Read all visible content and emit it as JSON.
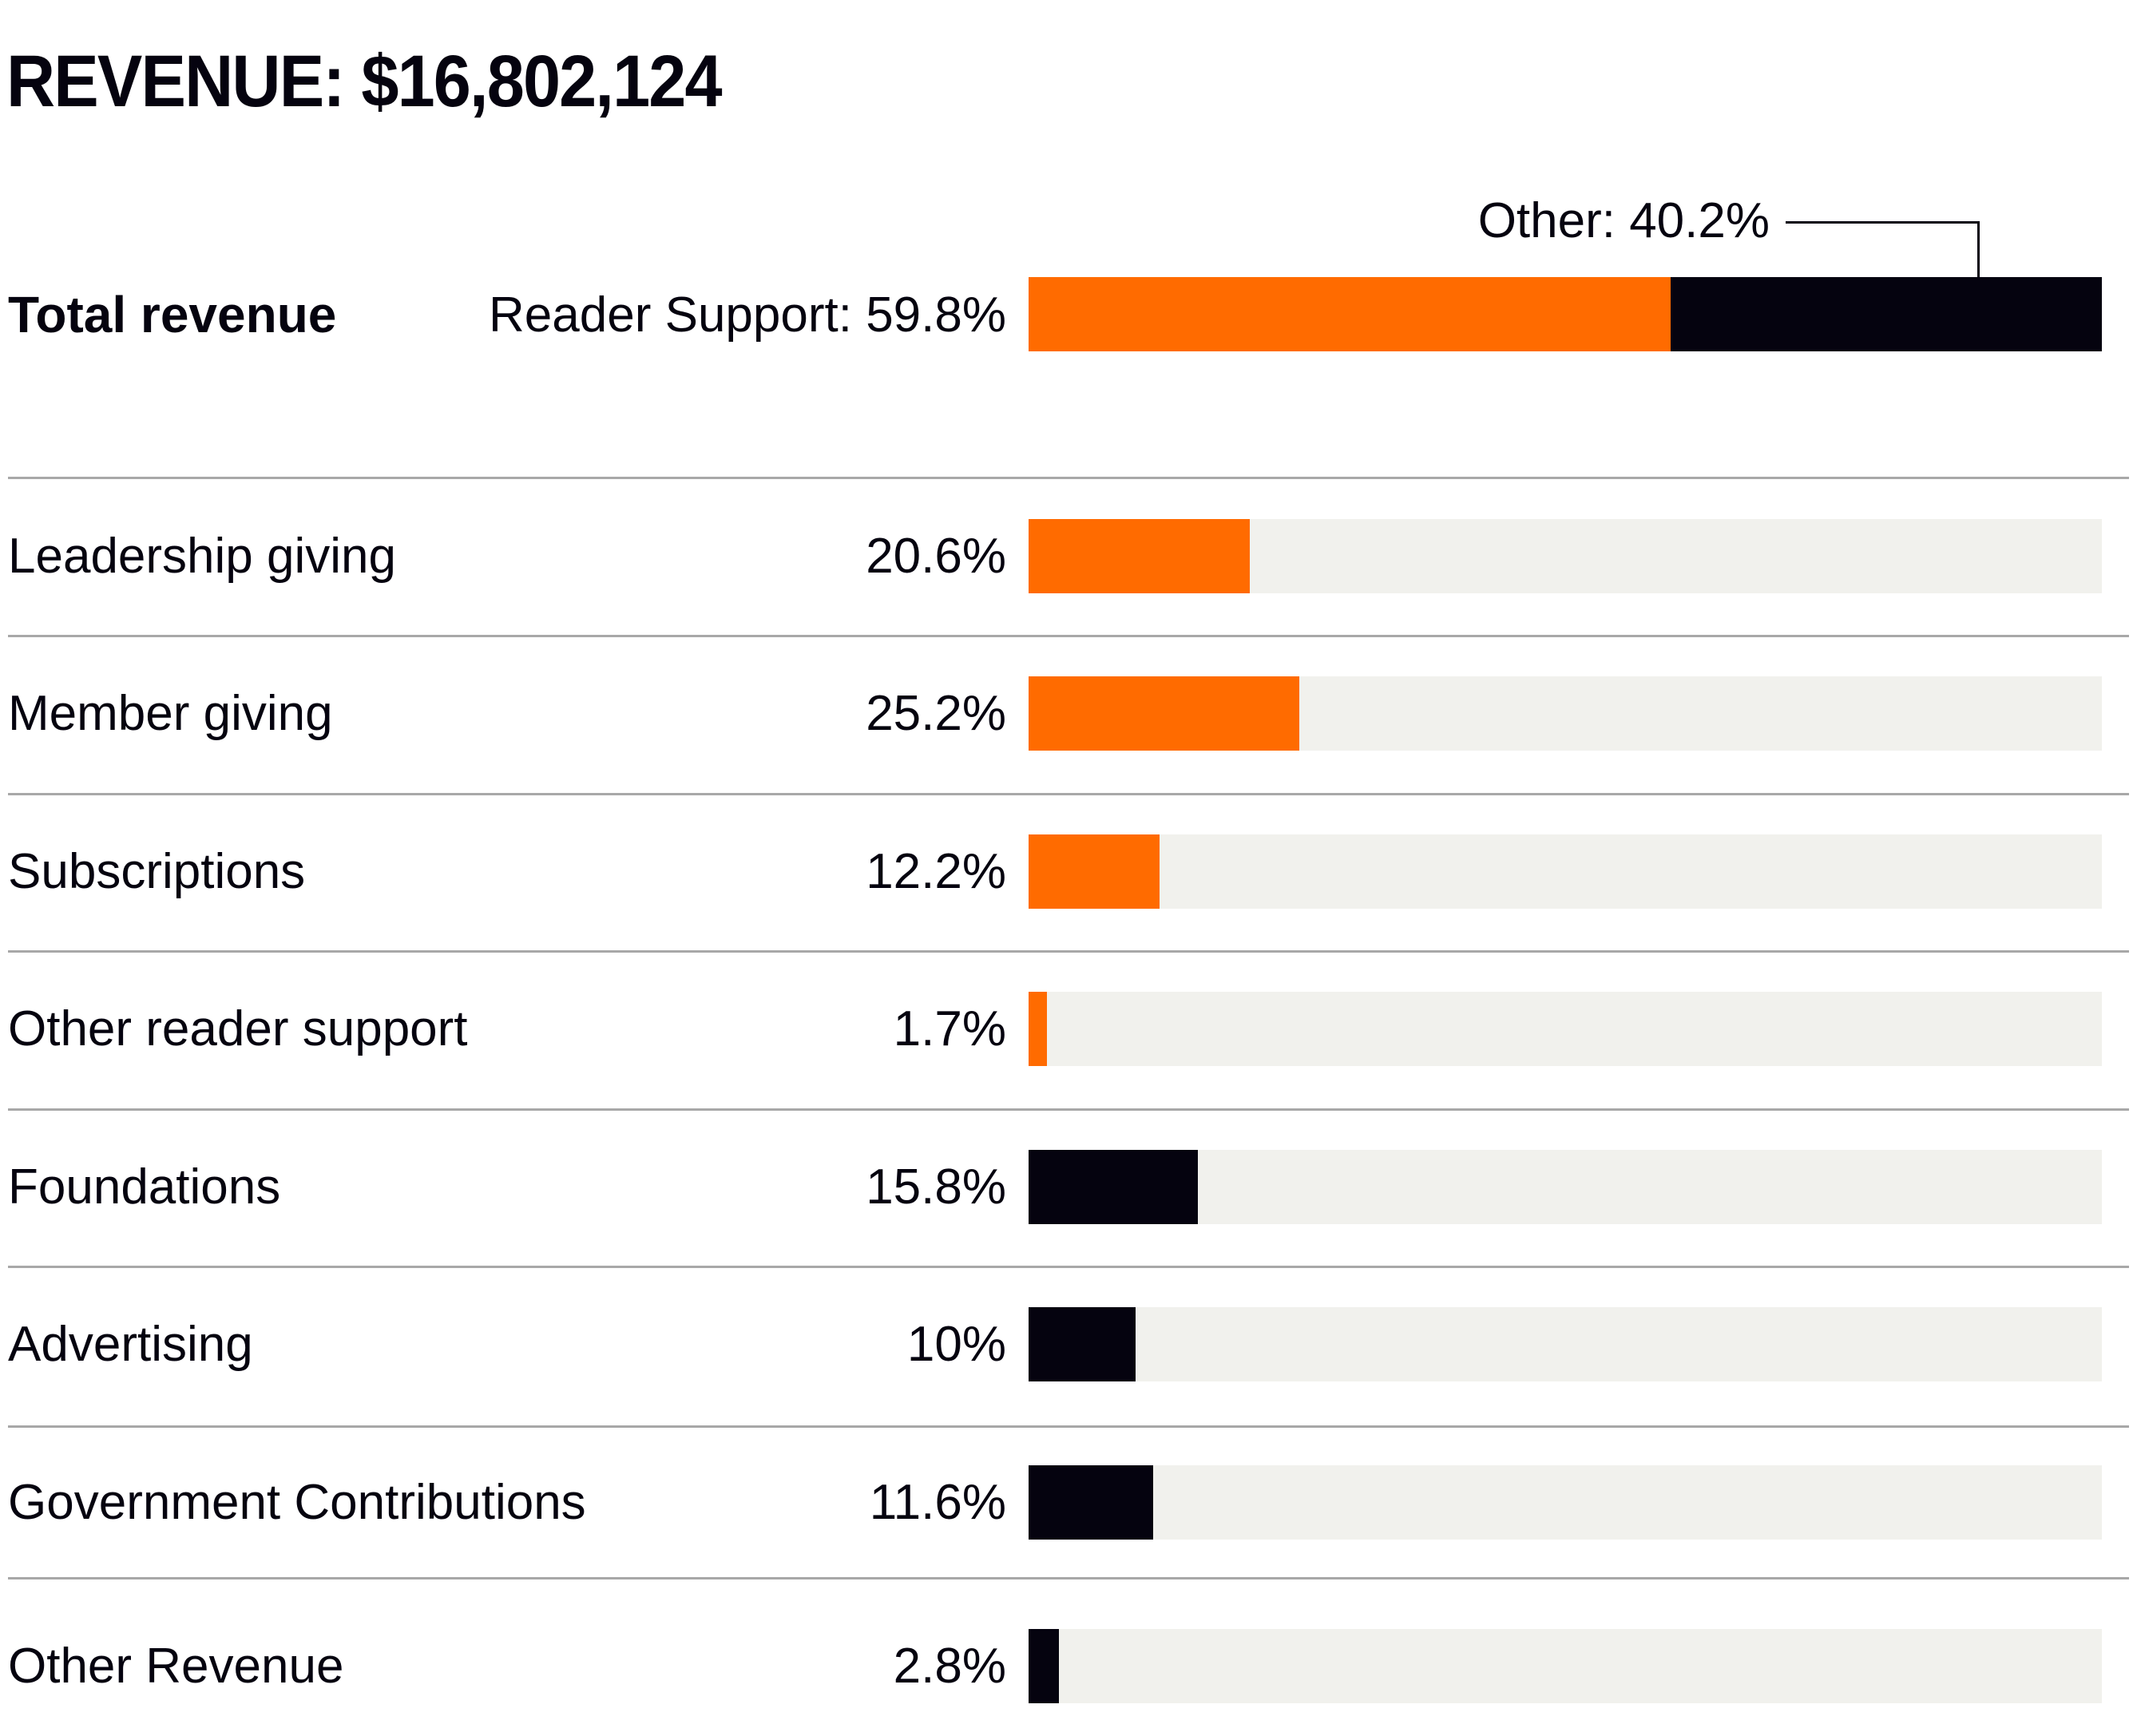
{
  "header": {
    "title": "REVENUE: $16,802,124"
  },
  "colors": {
    "reader_support": "#ff6b00",
    "other": "#05030f",
    "track": "#f1f1ed",
    "divider": "#a8a8a8"
  },
  "chart_data": {
    "type": "bar",
    "title": "REVENUE: $16,802,124",
    "total_revenue": {
      "label": "Total revenue",
      "segments": [
        {
          "name": "Reader Support",
          "label": "Reader Support: 59.8%",
          "value": 59.8,
          "color": "#ff6b00"
        },
        {
          "name": "Other",
          "label": "Other: 40.2%",
          "value": 40.2,
          "color": "#05030f"
        }
      ]
    },
    "categories": [
      "Leadership giving",
      "Member giving",
      "Subscriptions",
      "Other reader support",
      "Foundations",
      "Advertising",
      "Government Contributions",
      "Other Revenue"
    ],
    "rows": [
      {
        "label": "Leadership giving",
        "value": 20.6,
        "display": "20.6%",
        "group": "Reader Support",
        "color": "#ff6b00"
      },
      {
        "label": "Member giving",
        "value": 25.2,
        "display": "25.2%",
        "group": "Reader Support",
        "color": "#ff6b00"
      },
      {
        "label": "Subscriptions",
        "value": 12.2,
        "display": "12.2%",
        "group": "Reader Support",
        "color": "#ff6b00"
      },
      {
        "label": "Other reader support",
        "value": 1.7,
        "display": "1.7%",
        "group": "Reader Support",
        "color": "#ff6b00"
      },
      {
        "label": "Foundations",
        "value": 15.8,
        "display": "15.8%",
        "group": "Other",
        "color": "#05030f"
      },
      {
        "label": "Advertising",
        "value": 10,
        "display": "10%",
        "group": "Other",
        "color": "#05030f"
      },
      {
        "label": "Government Contributions",
        "value": 11.6,
        "display": "11.6%",
        "group": "Other",
        "color": "#05030f"
      },
      {
        "label": "Other Revenue",
        "value": 2.8,
        "display": "2.8%",
        "group": "Other",
        "color": "#05030f"
      }
    ],
    "xlim": [
      0,
      100
    ],
    "xlabel": "",
    "ylabel": "",
    "grid": false,
    "legend": "none"
  }
}
